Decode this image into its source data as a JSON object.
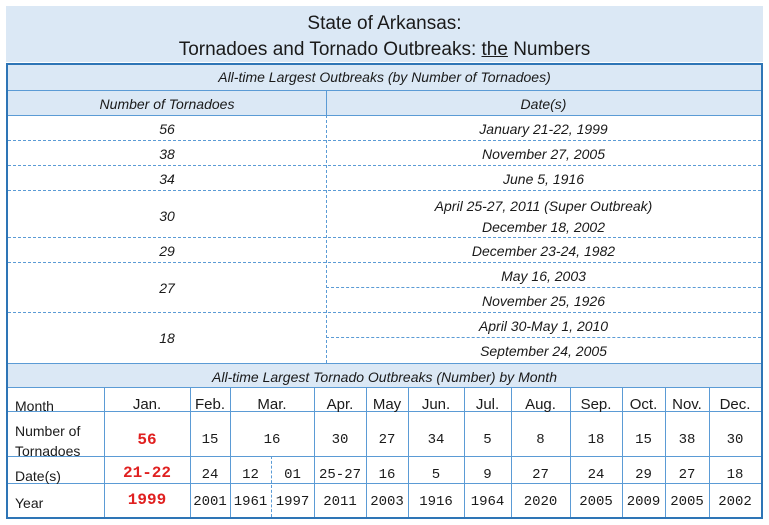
{
  "title": {
    "line1": "State of Arkansas:",
    "line2_pre": "Tornadoes and Tornado Outbreaks: ",
    "line2_u": "the",
    "line2_post": " Numbers"
  },
  "section1": {
    "title": "All-time Largest Outbreaks (by Number of Tornadoes)",
    "col_count": "Number of Tornadoes",
    "col_dates": "Date(s)",
    "rows": [
      {
        "count": "56",
        "dates": [
          "January 21-22, 1999"
        ]
      },
      {
        "count": "38",
        "dates": [
          "November 27, 2005"
        ]
      },
      {
        "count": "34",
        "dates": [
          "June 5, 1916"
        ]
      },
      {
        "count": "30",
        "dates": [
          "April 25-27, 2011 (Super Outbreak)",
          "December 18, 2002"
        ]
      },
      {
        "count": "29",
        "dates": [
          "December 23-24, 1982"
        ]
      },
      {
        "count": "27",
        "dates": [
          "May 16, 2003",
          "November 25, 1926"
        ]
      },
      {
        "count": "18",
        "dates": [
          "April 30-May 1, 2010",
          "September 24, 2005"
        ]
      }
    ]
  },
  "section2": {
    "title": "All-time Largest Tornado Outbreaks (Number) by Month",
    "row_labels": {
      "month": "Month",
      "tornadoes_1": "Number of",
      "tornadoes_2": "Tornadoes",
      "dates": "Date(s)",
      "year": "Year"
    },
    "months": [
      "Jan.",
      "Feb.",
      "Mar.",
      "Apr.",
      "May",
      "Jun.",
      "Jul.",
      "Aug.",
      "Sep.",
      "Oct.",
      "Nov.",
      "Dec."
    ],
    "tornadoes": [
      "56",
      "15",
      "16",
      "30",
      "27",
      "34",
      "5",
      "8",
      "18",
      "15",
      "38",
      "30"
    ],
    "dates": [
      "21-22",
      "24",
      "12",
      "01",
      "25-27",
      "16",
      "5",
      "9",
      "27",
      "24",
      "29",
      "27",
      "18"
    ],
    "years": [
      "1999",
      "2001",
      "1961",
      "1997",
      "2011",
      "2003",
      "1916",
      "1964",
      "2020",
      "2005",
      "2009",
      "2005",
      "2002"
    ]
  },
  "colors": {
    "header_band": "#dbe8f5",
    "border": "#2e75b6",
    "highlight": "#e02020"
  }
}
